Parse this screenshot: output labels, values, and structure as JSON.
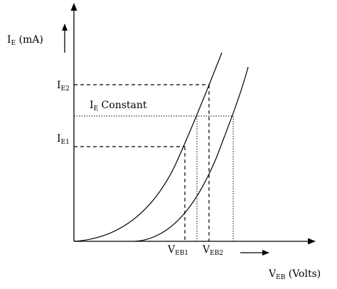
{
  "diagram": {
    "y_axis": {
      "main": "I",
      "sub": "E",
      "rest": " (mA)"
    },
    "x_axis": {
      "main": "V",
      "sub": "EB",
      "rest": " (Volts)"
    },
    "ie2_label": {
      "main": "I",
      "sub": "E2"
    },
    "ie1_label": {
      "main": "I",
      "sub": "E1"
    },
    "ie_constant_label": {
      "main": "I",
      "sub": "E",
      "rest": " Constant"
    },
    "veb1_label": {
      "main": "V",
      "sub": "EB1"
    },
    "veb2_label": {
      "main": "V",
      "sub": "EB2"
    }
  }
}
